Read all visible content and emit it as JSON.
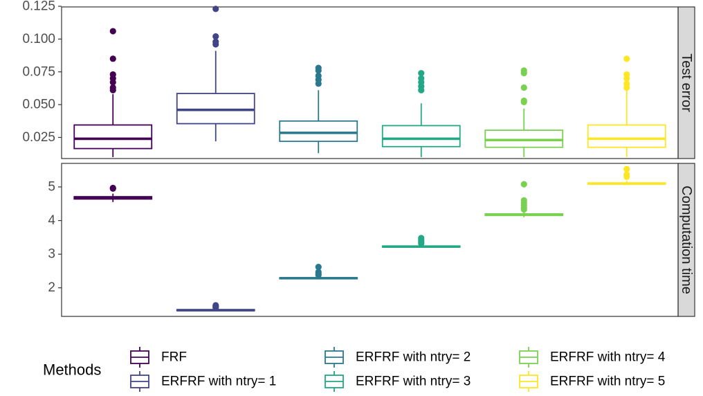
{
  "chart_data": {
    "type": "boxplot",
    "facet_layout": "vertical, facet labels on right strips",
    "grid": false,
    "categories": [
      "FRF",
      "ERFRF with ntry= 1",
      "ERFRF with ntry= 2",
      "ERFRF with ntry= 3",
      "ERFRF with ntry= 4",
      "ERFRF with ntry= 5"
    ],
    "colors": [
      "#440154",
      "#414487",
      "#2a788e",
      "#22a884",
      "#7ad151",
      "#fde725"
    ],
    "panels": [
      {
        "label": "Test error",
        "ylim": [
          0.0089,
          0.1245
        ],
        "yticks": [
          0.025,
          0.05,
          0.075,
          0.1,
          0.125
        ],
        "ytick_labels": [
          "0.025",
          "0.050",
          "0.075",
          "0.100",
          "0.125"
        ],
        "boxes": [
          {
            "min": 0.01,
            "q1": 0.0165,
            "median": 0.024,
            "q3": 0.0345,
            "max": 0.058,
            "outliers": [
              0.106,
              0.085,
              0.073,
              0.07,
              0.067,
              0.063,
              0.061
            ]
          },
          {
            "min": 0.022,
            "q1": 0.0355,
            "median": 0.046,
            "q3": 0.0585,
            "max": 0.091,
            "outliers": [
              0.123,
              0.102,
              0.098,
              0.096
            ]
          },
          {
            "min": 0.013,
            "q1": 0.022,
            "median": 0.0285,
            "q3": 0.0375,
            "max": 0.061,
            "outliers": [
              0.078,
              0.076,
              0.072,
              0.069,
              0.066
            ]
          },
          {
            "min": 0.01,
            "q1": 0.018,
            "median": 0.024,
            "q3": 0.034,
            "max": 0.051,
            "outliers": [
              0.074,
              0.07,
              0.067,
              0.064,
              0.061
            ]
          },
          {
            "min": 0.01,
            "q1": 0.0175,
            "median": 0.023,
            "q3": 0.0305,
            "max": 0.047,
            "outliers": [
              0.076,
              0.074,
              0.063,
              0.053,
              0.052
            ]
          },
          {
            "min": 0.01,
            "q1": 0.0175,
            "median": 0.024,
            "q3": 0.0345,
            "max": 0.061,
            "outliers": [
              0.085,
              0.073,
              0.07,
              0.066,
              0.063
            ]
          }
        ]
      },
      {
        "label": "Computation time",
        "ylim": [
          1.15,
          5.7
        ],
        "yticks": [
          2,
          3,
          4,
          5
        ],
        "ytick_labels": [
          "2",
          "3",
          "4",
          "5"
        ],
        "boxes": [
          {
            "min": 4.55,
            "q1": 4.64,
            "median": 4.67,
            "q3": 4.71,
            "max": 4.8,
            "outliers": [
              4.97,
              4.95
            ]
          },
          {
            "min": 1.31,
            "q1": 1.32,
            "median": 1.335,
            "q3": 1.35,
            "max": 1.37,
            "outliers": [
              1.48,
              1.46,
              1.43,
              1.41
            ]
          },
          {
            "min": 2.25,
            "q1": 2.27,
            "median": 2.285,
            "q3": 2.3,
            "max": 2.32,
            "outliers": [
              2.62,
              2.47,
              2.42,
              2.38
            ]
          },
          {
            "min": 3.19,
            "q1": 3.21,
            "median": 3.225,
            "q3": 3.24,
            "max": 3.27,
            "outliers": [
              3.48,
              3.42,
              3.37,
              3.32
            ]
          },
          {
            "min": 4.1,
            "q1": 4.15,
            "median": 4.175,
            "q3": 4.2,
            "max": 4.27,
            "outliers": [
              5.08,
              4.6,
              4.52,
              4.46,
              4.38,
              4.33
            ]
          },
          {
            "min": 5.05,
            "q1": 5.08,
            "median": 5.1,
            "q3": 5.12,
            "max": 5.18,
            "outliers": [
              5.53,
              5.37,
              5.3
            ]
          }
        ]
      }
    ],
    "legend": {
      "title": "Methods",
      "position": "bottom",
      "entries": [
        "FRF",
        "ERFRF with ntry= 1",
        "ERFRF with ntry= 2",
        "ERFRF with ntry= 3",
        "ERFRF with ntry= 4",
        "ERFRF with ntry= 5"
      ]
    }
  }
}
